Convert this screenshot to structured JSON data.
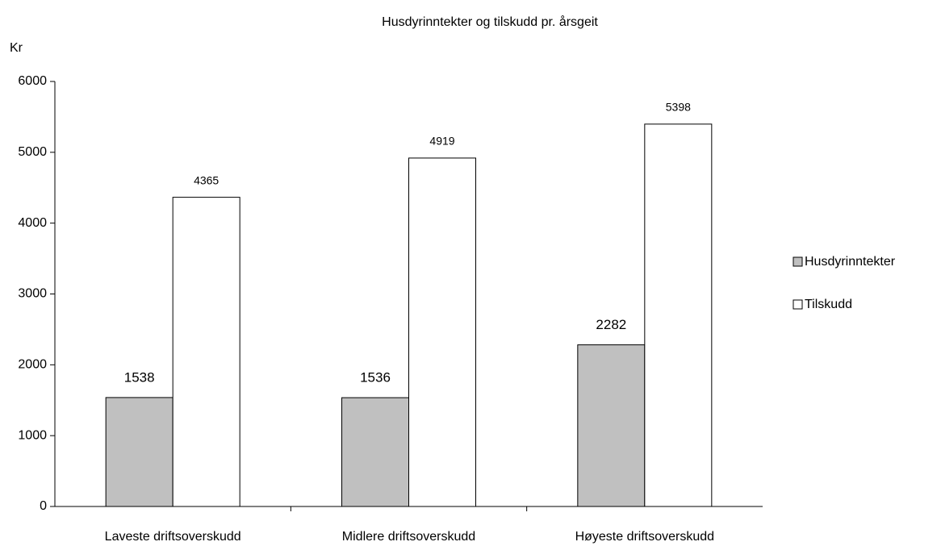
{
  "chart_data": {
    "type": "bar",
    "title": "Husdyrinntekter og tilskudd pr. årsgeit",
    "y_label": "Kr",
    "categories": [
      "Laveste driftsoverskudd",
      "Midlere driftsoverskudd",
      "Høyeste driftsoverskudd"
    ],
    "series": [
      {
        "name": "Husdyrinntekter",
        "color": "#c0c0c0",
        "values": [
          1538,
          1536,
          2282
        ]
      },
      {
        "name": "Tilskudd",
        "color": "#ffffff",
        "values": [
          4365,
          4919,
          5398
        ]
      }
    ],
    "ylim": [
      0,
      6000
    ],
    "yticks": [
      0,
      1000,
      2000,
      3000,
      4000,
      5000,
      6000
    ],
    "grid": false,
    "legend": "right"
  }
}
